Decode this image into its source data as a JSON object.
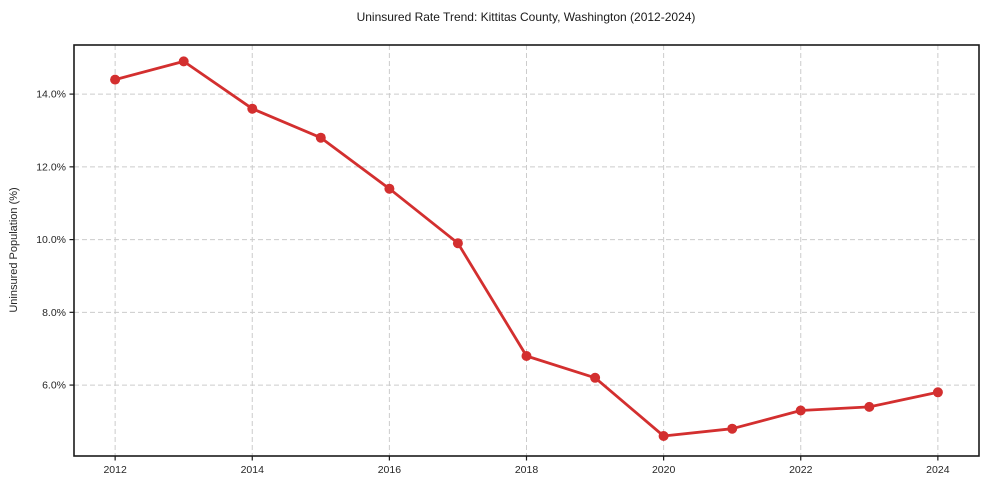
{
  "page": {
    "background_color": "#ffffff"
  },
  "chart_data": {
    "type": "line",
    "title": "Uninsured Rate Trend: Kittitas County, Washington (2012-2024)",
    "xlabel": "",
    "ylabel": "Uninsured Population (%)",
    "x": [
      2012,
      2013,
      2014,
      2015,
      2016,
      2017,
      2018,
      2019,
      2020,
      2021,
      2022,
      2023,
      2024
    ],
    "series": [
      {
        "name": "Uninsured Population (%)",
        "values": [
          14.4,
          14.9,
          13.6,
          12.8,
          11.4,
          9.9,
          6.8,
          6.2,
          4.6,
          4.8,
          5.3,
          5.4,
          5.8
        ]
      }
    ],
    "x_ticks": [
      2012,
      2014,
      2016,
      2018,
      2020,
      2022,
      2024
    ],
    "x_tick_labels": [
      "2012",
      "2014",
      "2016",
      "2018",
      "2020",
      "2022",
      "2024"
    ],
    "y_ticks": [
      6,
      8,
      10,
      12,
      14
    ],
    "y_tick_labels": [
      "6.0%",
      "8.0%",
      "10.0%",
      "12.0%",
      "14.0%"
    ],
    "xlim": [
      2011.4,
      2024.6
    ],
    "ylim": [
      4.05,
      15.35
    ],
    "grid": true,
    "grid_style": "dashed",
    "legend": "none",
    "line_color": "#d32f2f",
    "marker": "circle",
    "grid_color": "#cccccc",
    "axis_color": "#1a1a1a",
    "text_color": "#262626"
  }
}
